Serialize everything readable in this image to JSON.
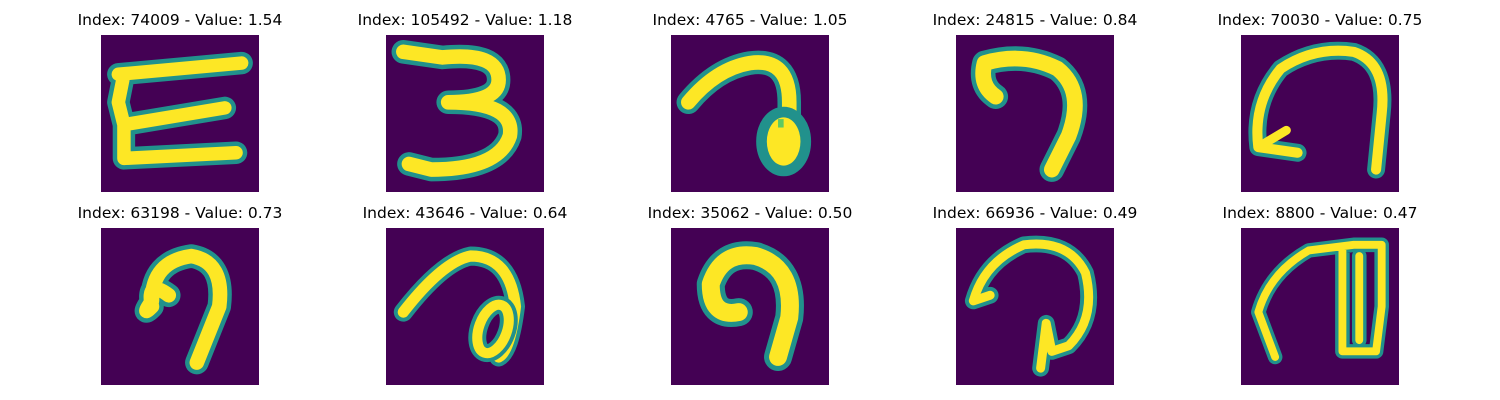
{
  "colors": {
    "background": "#440154",
    "stroke_core": "#fde725",
    "stroke_mid": "#5ec962",
    "stroke_edge": "#21918c"
  },
  "cells": [
    {
      "index": "74009",
      "value": "1.54",
      "title": "Index: 74009 - Value: 1.54",
      "glyph": "zigzag-E"
    },
    {
      "index": "105492",
      "value": "1.18",
      "title": "Index: 105492 - Value: 1.18",
      "glyph": "three"
    },
    {
      "index": "4765",
      "value": "1.05",
      "title": "Index: 4765 - Value: 1.05",
      "glyph": "hook-loop"
    },
    {
      "index": "24815",
      "value": "0.84",
      "title": "Index: 24815 - Value: 0.84",
      "glyph": "seven-hook"
    },
    {
      "index": "70030",
      "value": "0.75",
      "title": "Index: 70030 - Value: 0.75",
      "glyph": "arch"
    },
    {
      "index": "63198",
      "value": "0.73",
      "title": "Index: 63198 - Value: 0.73",
      "glyph": "curl"
    },
    {
      "index": "43646",
      "value": "0.64",
      "title": "Index: 43646 - Value: 0.64",
      "glyph": "hook-oval"
    },
    {
      "index": "35062",
      "value": "0.50",
      "title": "Index: 35062 - Value: 0.50",
      "glyph": "thick-curl"
    },
    {
      "index": "66936",
      "value": "0.49",
      "title": "Index: 66936 - Value: 0.49",
      "glyph": "arch-loop"
    },
    {
      "index": "8800",
      "value": "0.47",
      "title": "Index: 8800 - Value: 0.47",
      "glyph": "arch-box"
    }
  ]
}
